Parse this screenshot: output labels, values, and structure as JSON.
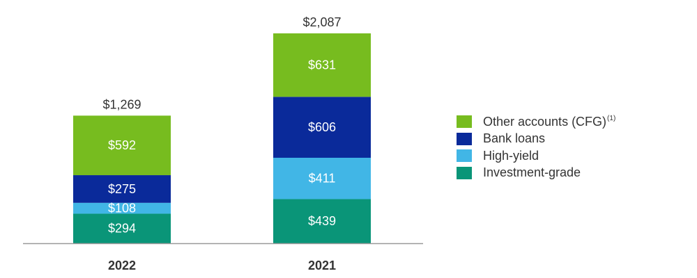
{
  "chart_data": {
    "type": "bar",
    "stacked": true,
    "categories": [
      "2022",
      "2021"
    ],
    "series": [
      {
        "name": "Investment-grade",
        "values": [
          294,
          439
        ],
        "labels": [
          "$294",
          "$439"
        ],
        "color": "#0a9578"
      },
      {
        "name": "High-yield",
        "values": [
          108,
          411
        ],
        "labels": [
          "$108",
          "$411"
        ],
        "color": "#41b6e6"
      },
      {
        "name": "Bank loans",
        "values": [
          275,
          606
        ],
        "labels": [
          "$275",
          "$606"
        ],
        "color": "#0a2a9a"
      },
      {
        "name": "Other accounts (CFG)",
        "name_superscript": "(1)",
        "values": [
          592,
          631
        ],
        "labels": [
          "$592",
          "$631"
        ],
        "color": "#77bc1f"
      }
    ],
    "totals": [
      1269,
      2087
    ],
    "total_labels": [
      "$1,269",
      "$2,087"
    ],
    "legend_position": "right",
    "grid": false,
    "axis_color": "#999999"
  }
}
